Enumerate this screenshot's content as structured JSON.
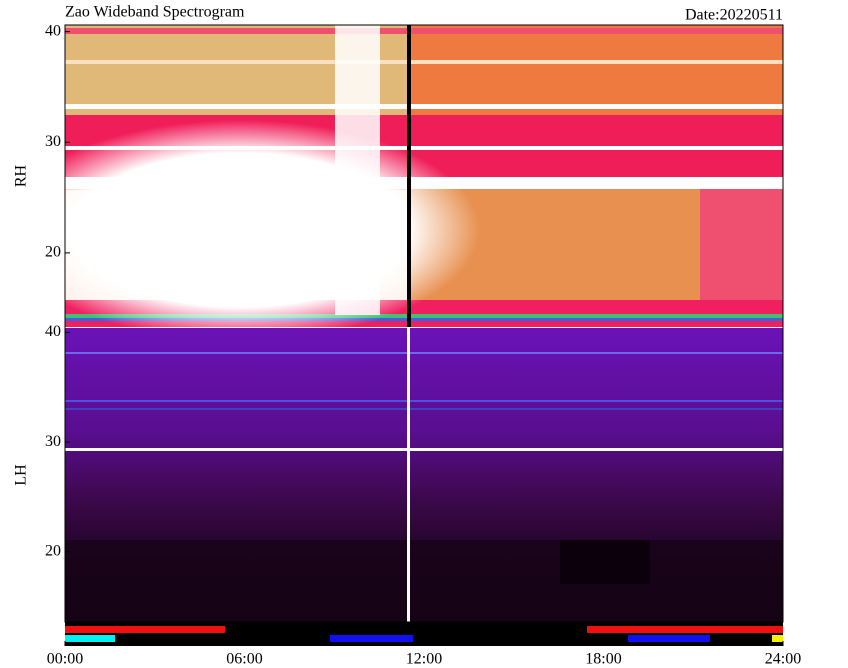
{
  "chart_data": {
    "type": "spectrogram",
    "title": "Zao Wideband Spectrogram",
    "date": "Date:20220511",
    "xlim": [
      0,
      24
    ],
    "xticks": [
      {
        "value": 0,
        "label": "00:00"
      },
      {
        "value": 6,
        "label": "06:00"
      },
      {
        "value": 12,
        "label": "12:00"
      },
      {
        "value": 18,
        "label": "18:00"
      },
      {
        "value": 24,
        "label": "24:00"
      }
    ],
    "panels": [
      {
        "label": "RH",
        "ylim": [
          13.3,
          40.6
        ],
        "yticks": [
          20,
          30,
          40
        ]
      },
      {
        "label": "LH",
        "ylim": [
          13.6,
          40.4
        ],
        "yticks": [
          20,
          30,
          40
        ]
      }
    ]
  }
}
